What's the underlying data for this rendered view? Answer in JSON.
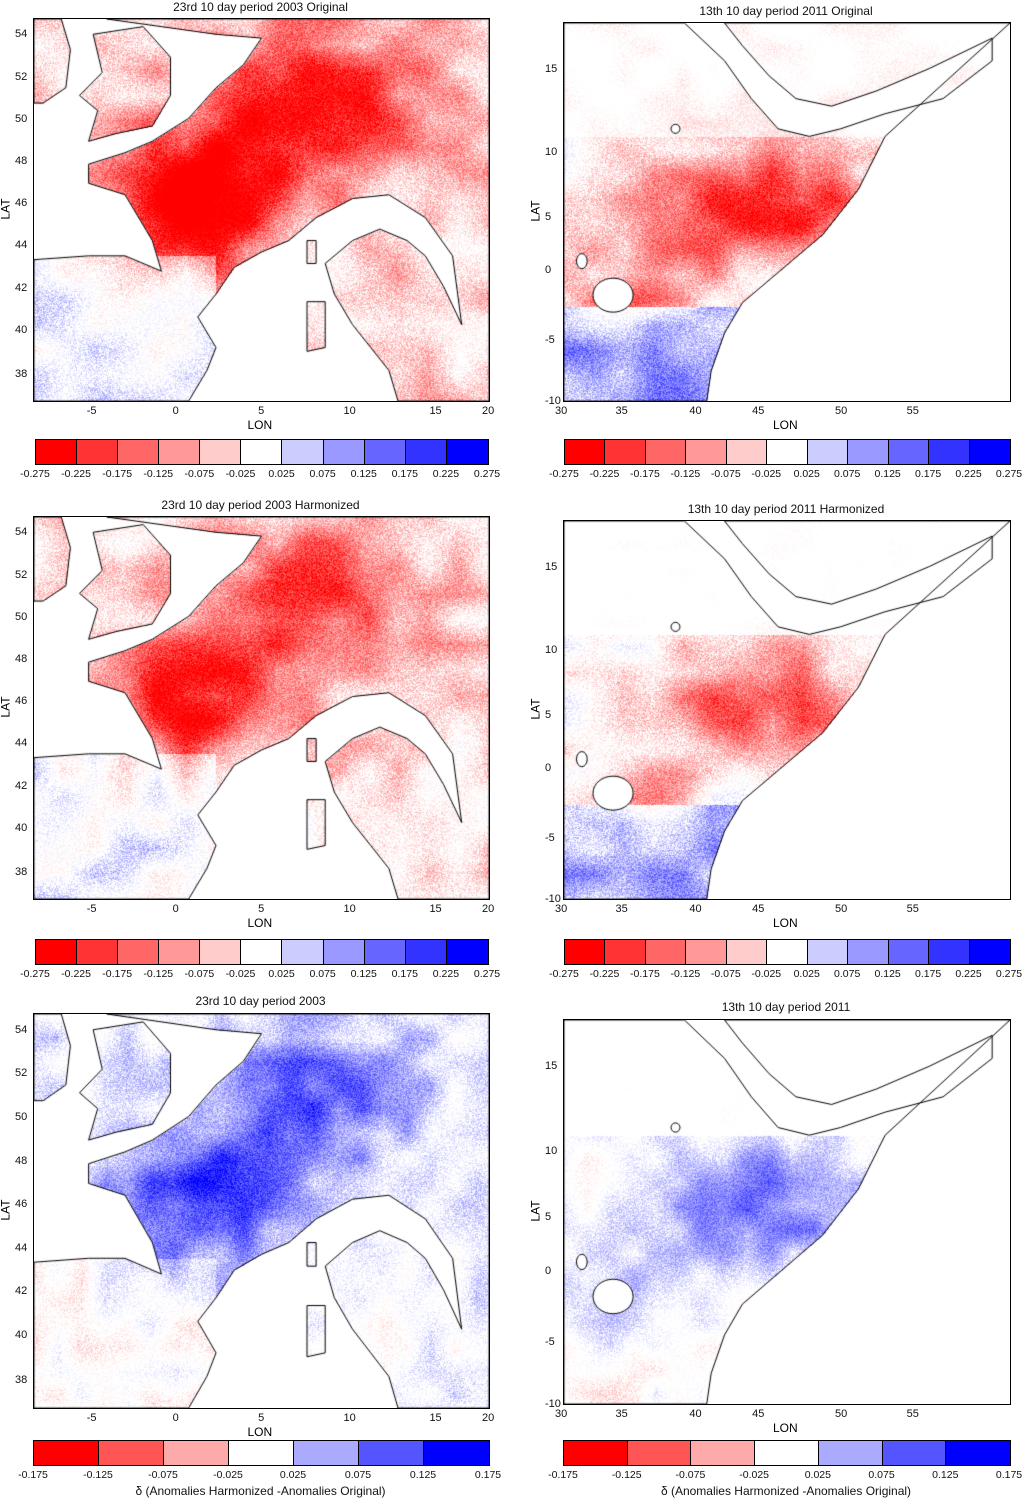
{
  "titles": {
    "eu_orig": "23rd 10 day period 2003 Original",
    "af_orig": "13th 10 day period 2011 Original",
    "eu_harm": "23rd 10 day period 2003 Harmonized",
    "af_harm": "13th 10 day period 2011 Harmonized",
    "eu_diff": "23rd 10 day period 2003",
    "af_diff": "13th 10 day period 2011"
  },
  "axes": {
    "xlabel": "LON",
    "ylabel": "LAT",
    "europe": {
      "xticks": [
        "-5",
        "0",
        "5",
        "10",
        "15",
        "20"
      ],
      "yticks": [
        "54",
        "52",
        "50",
        "48",
        "46",
        "44",
        "42",
        "40",
        "38"
      ]
    },
    "africa": {
      "xticks": [
        "30",
        "35",
        "40",
        "45",
        "50",
        "55"
      ],
      "yticks": [
        "15",
        "10",
        "5",
        "0",
        "-5",
        "-10"
      ]
    }
  },
  "colorbars": {
    "anomaly": {
      "labels": [
        "-0.275",
        "-0.225",
        "-0.175",
        "-0.125",
        "-0.075",
        "-0.025",
        "0.025",
        "0.075",
        "0.125",
        "0.175",
        "0.225",
        "0.275"
      ],
      "colors": [
        "#ff0000",
        "#ff3333",
        "#ff6666",
        "#ff9999",
        "#ffcccc",
        "#ffffff",
        "#ccccff",
        "#9999ff",
        "#6666ff",
        "#3333ff",
        "#0000ff"
      ]
    },
    "delta": {
      "labels": [
        "-0.175",
        "-0.125",
        "-0.075",
        "-0.025",
        "0.025",
        "0.075",
        "0.125",
        "0.175"
      ],
      "colors": [
        "#ff0000",
        "#ff5555",
        "#ffaaaa",
        "#ffffff",
        "#aaaaff",
        "#5555ff",
        "#0000ff"
      ],
      "caption": "δ (Anomalies Harmonized -Anomalies Original)"
    }
  }
}
